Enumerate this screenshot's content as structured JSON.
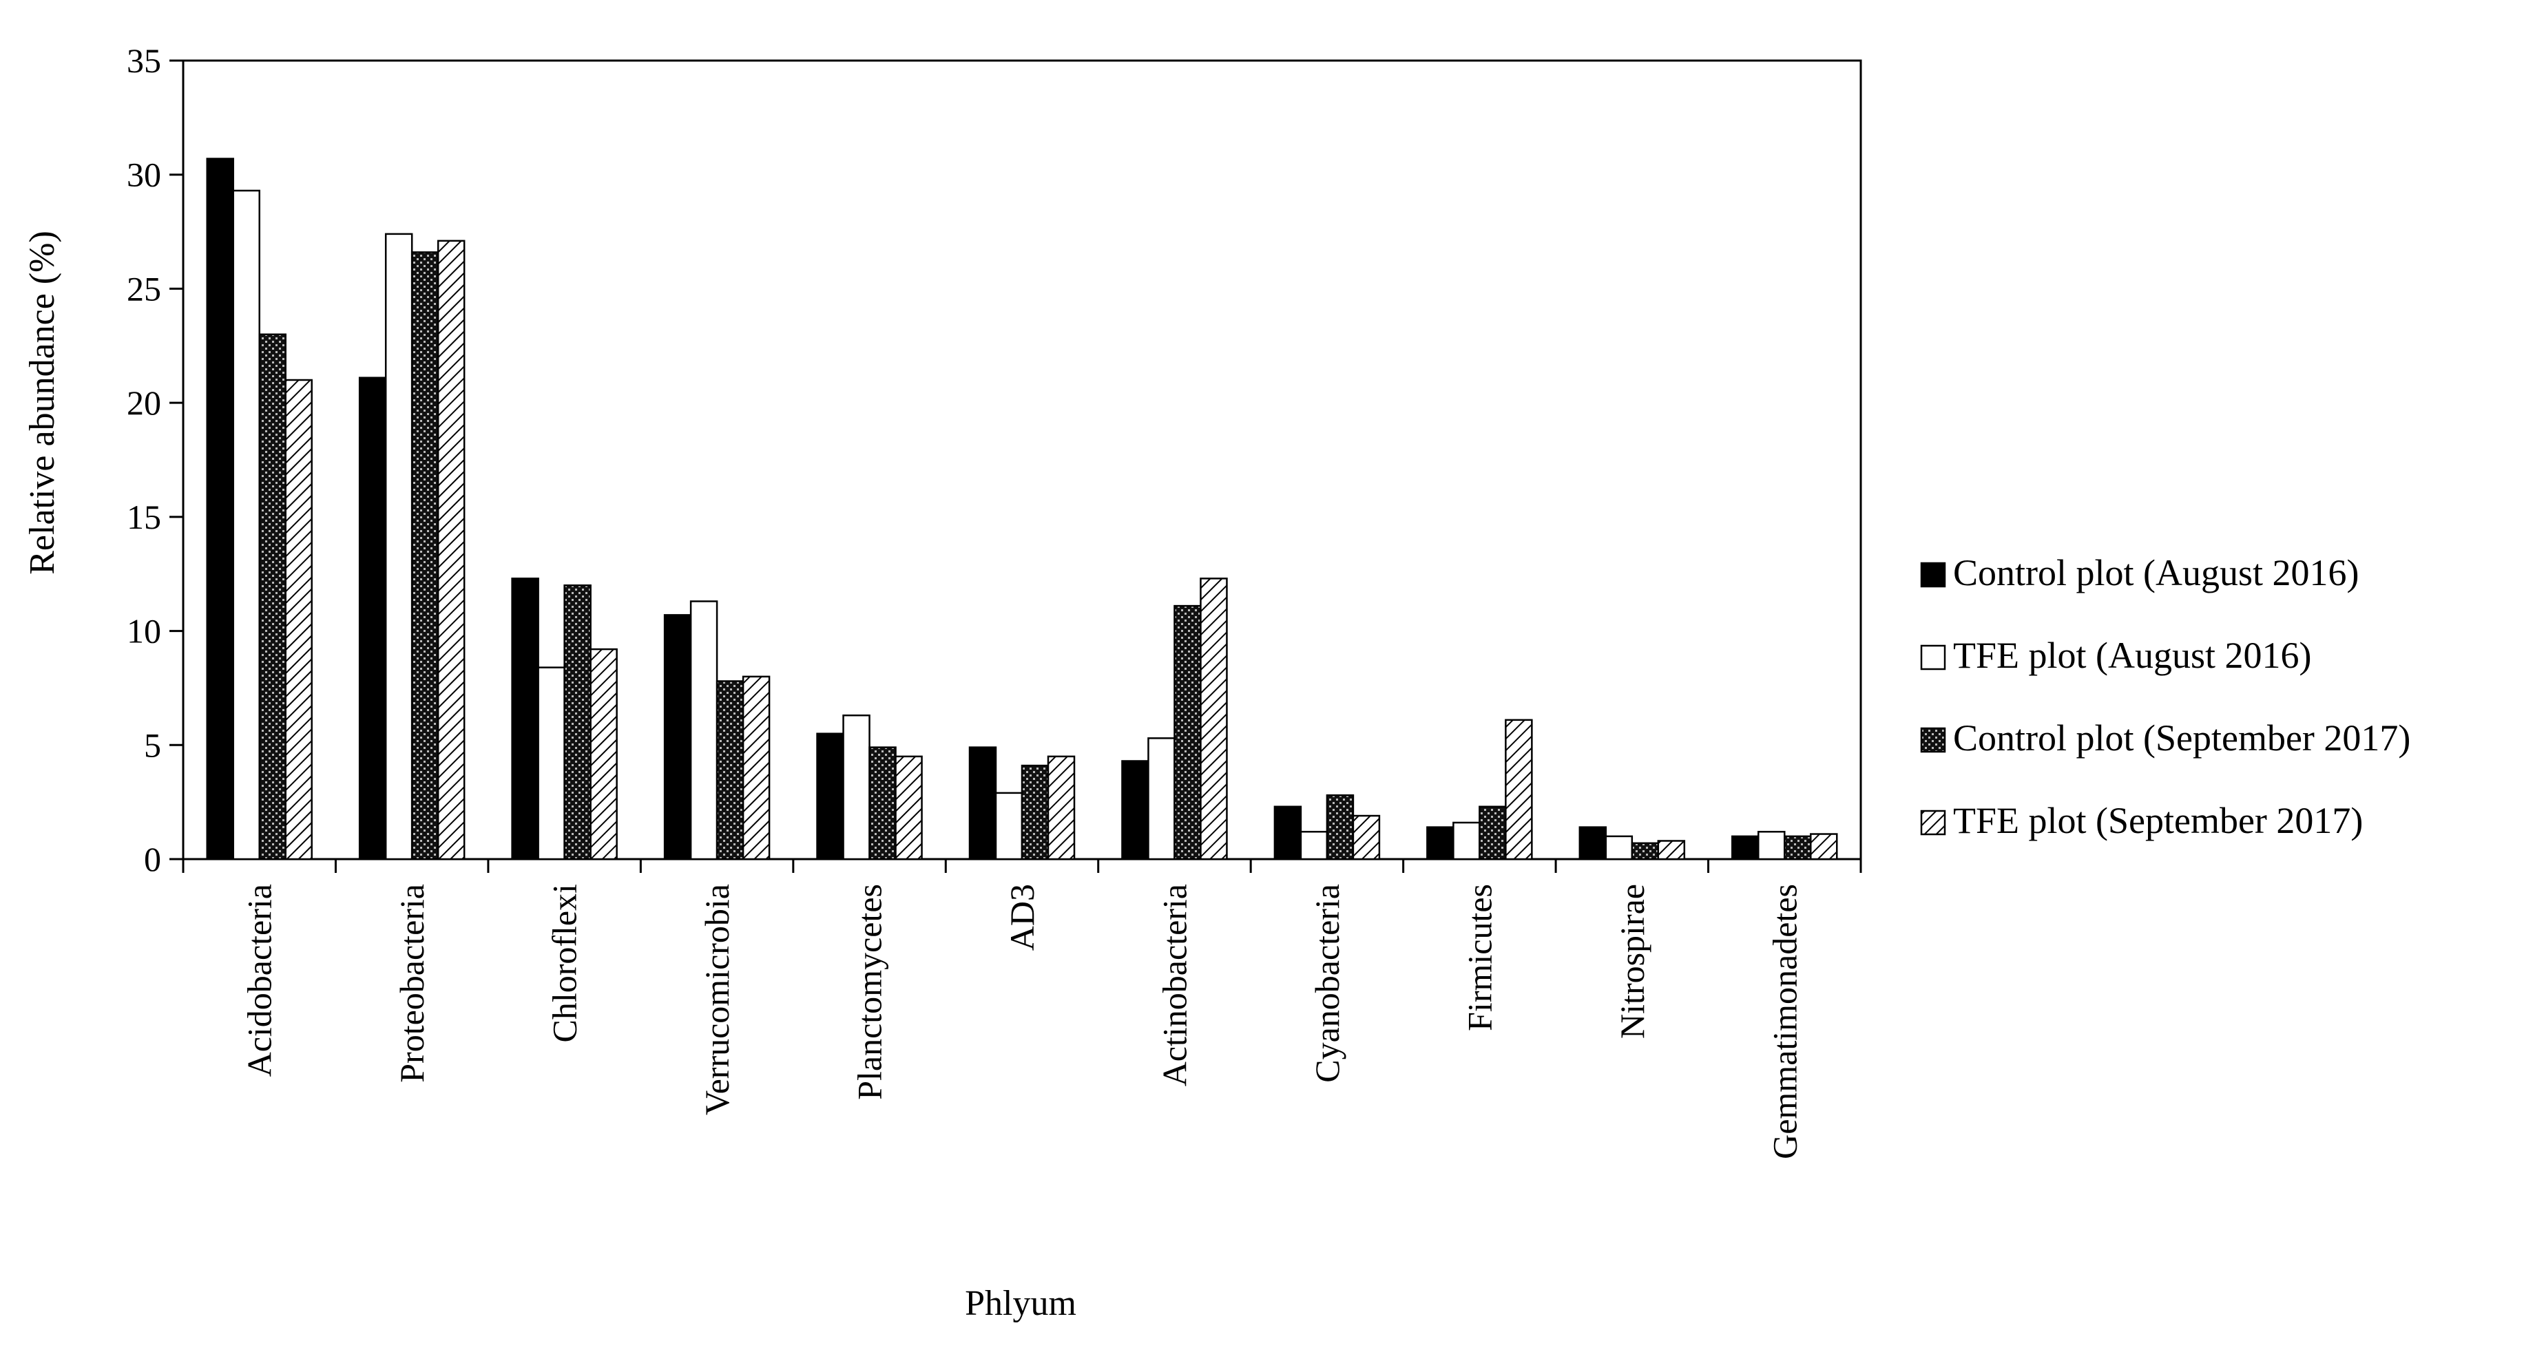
{
  "chart_data": {
    "type": "bar",
    "title": "",
    "xlabel": "Phlyum",
    "ylabel": "Relative abundance (%)",
    "ylim": [
      0,
      35
    ],
    "yticks": [
      0,
      5,
      10,
      15,
      20,
      25,
      30,
      35
    ],
    "grid": false,
    "legend_position": "right",
    "categories": [
      "Acidobacteria",
      "Proteobacteria",
      "Chloroflexi",
      "Verrucomicrobia",
      "Planctomycetes",
      "AD3",
      "Actinobacteria",
      "Cyanobacteria",
      "Firmicutes",
      "Nitrospirae",
      "Gemmatimonadetes"
    ],
    "series": [
      {
        "name": "Control plot (August 2016)",
        "pattern": "solid-black",
        "values": [
          30.7,
          21.1,
          12.3,
          10.7,
          5.5,
          4.9,
          4.3,
          2.3,
          1.4,
          1.4,
          1.0
        ]
      },
      {
        "name": "TFE plot (August 2016)",
        "pattern": "white",
        "values": [
          29.3,
          27.4,
          8.4,
          11.3,
          6.3,
          2.9,
          5.3,
          1.2,
          1.6,
          1.0,
          1.2
        ]
      },
      {
        "name": "Control plot (September 2017)",
        "pattern": "dark-checker",
        "values": [
          23.0,
          26.6,
          12.0,
          7.8,
          4.9,
          4.1,
          11.1,
          2.8,
          2.3,
          0.7,
          1.0
        ]
      },
      {
        "name": "TFE plot (September 2017)",
        "pattern": "diagonal-hatch",
        "values": [
          21.0,
          27.1,
          9.2,
          8.0,
          4.5,
          4.5,
          12.3,
          1.9,
          6.1,
          0.8,
          1.1
        ]
      }
    ]
  }
}
